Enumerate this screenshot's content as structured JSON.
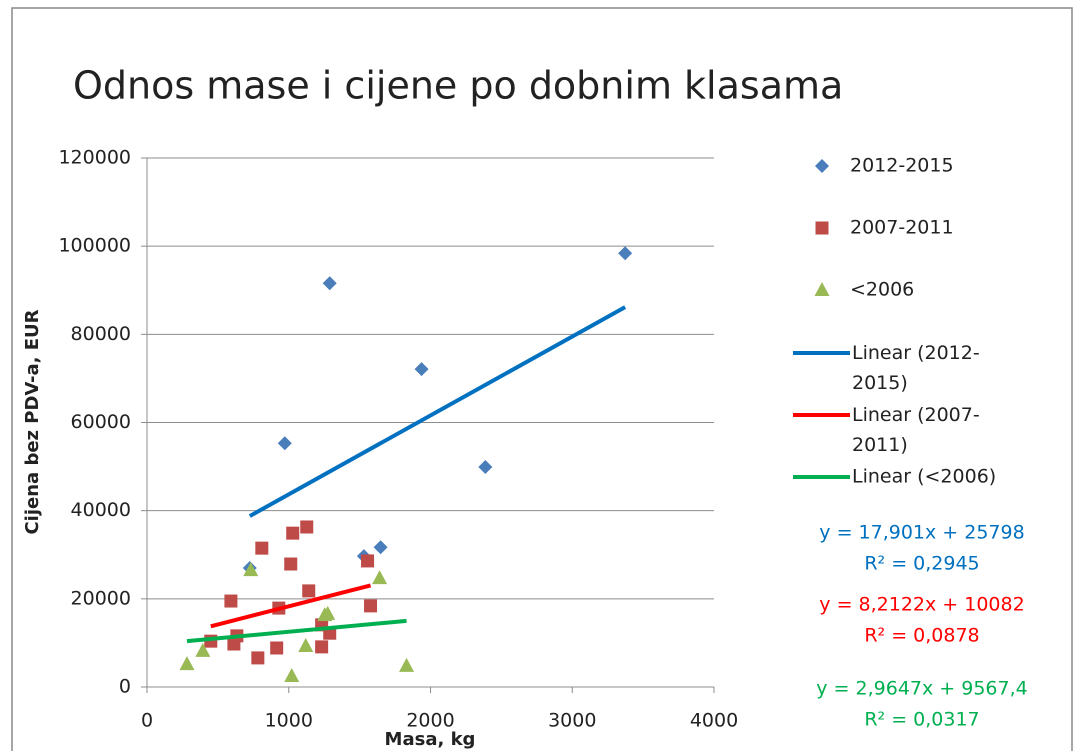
{
  "chart_data": {
    "type": "scatter",
    "title": "Odnos mase i cijene po dobnim klasama",
    "x_label": "Masa, kg",
    "y_label": "Cijena bez PDV-a, EUR",
    "xlim": [
      0,
      4000
    ],
    "xticks": [
      0,
      1000,
      2000,
      3000,
      4000
    ],
    "ylim": [
      0,
      120000
    ],
    "yticks": [
      0,
      20000,
      40000,
      60000,
      80000,
      100000,
      120000
    ],
    "grid": true,
    "series": [
      {
        "name": "2012-2015",
        "color": "#4a7ebb",
        "marker": "diamond",
        "x": [
          725,
          972,
          1289,
          1937,
          2387,
          3373,
          1648,
          1530
        ],
        "values": [
          27000,
          55300,
          91600,
          72100,
          49900,
          98400,
          31700,
          29700
        ]
      },
      {
        "name": "2007-2011",
        "color": "#be4b48",
        "marker": "square",
        "x": [
          450,
          592,
          613,
          634,
          782,
          810,
          915,
          930,
          1014,
          1028,
          1127,
          1141,
          1232,
          1232,
          1289,
          1556,
          1577
        ],
        "values": [
          10400,
          19500,
          9750,
          11600,
          6600,
          31500,
          8850,
          17900,
          27900,
          34900,
          36300,
          21800,
          14100,
          9100,
          12200,
          28600,
          18400
        ]
      },
      {
        "name": "<2006",
        "color": "#98b954",
        "marker": "triangle",
        "x": [
          282,
          394,
          732,
          1021,
          1120,
          1254,
          1275,
          1641,
          1831
        ],
        "values": [
          5200,
          8200,
          26500,
          2500,
          9300,
          16300,
          16600,
          24700,
          4800
        ]
      }
    ],
    "trendlines": [
      {
        "name": "Linear (2012-2015)",
        "color": "#0070c0",
        "x": [
          725,
          3373
        ],
        "values": [
          38776,
          86177
        ],
        "equation": "y = 17,901x + 25798",
        "r2": "R² = 0,2945"
      },
      {
        "name": "Linear (2007-2011)",
        "color": "#ff0000",
        "x": [
          450,
          1577
        ],
        "values": [
          13777,
          23032
        ],
        "equation": "y = 8,2122x + 10082",
        "r2": "R² = 0,0878"
      },
      {
        "name": "Linear (<2006)",
        "color": "#00b050",
        "x": [
          282,
          1831
        ],
        "values": [
          10403,
          14996
        ],
        "equation": "y = 2,9647x + 9567,4",
        "r2": "R² = 0,0317"
      }
    ]
  }
}
